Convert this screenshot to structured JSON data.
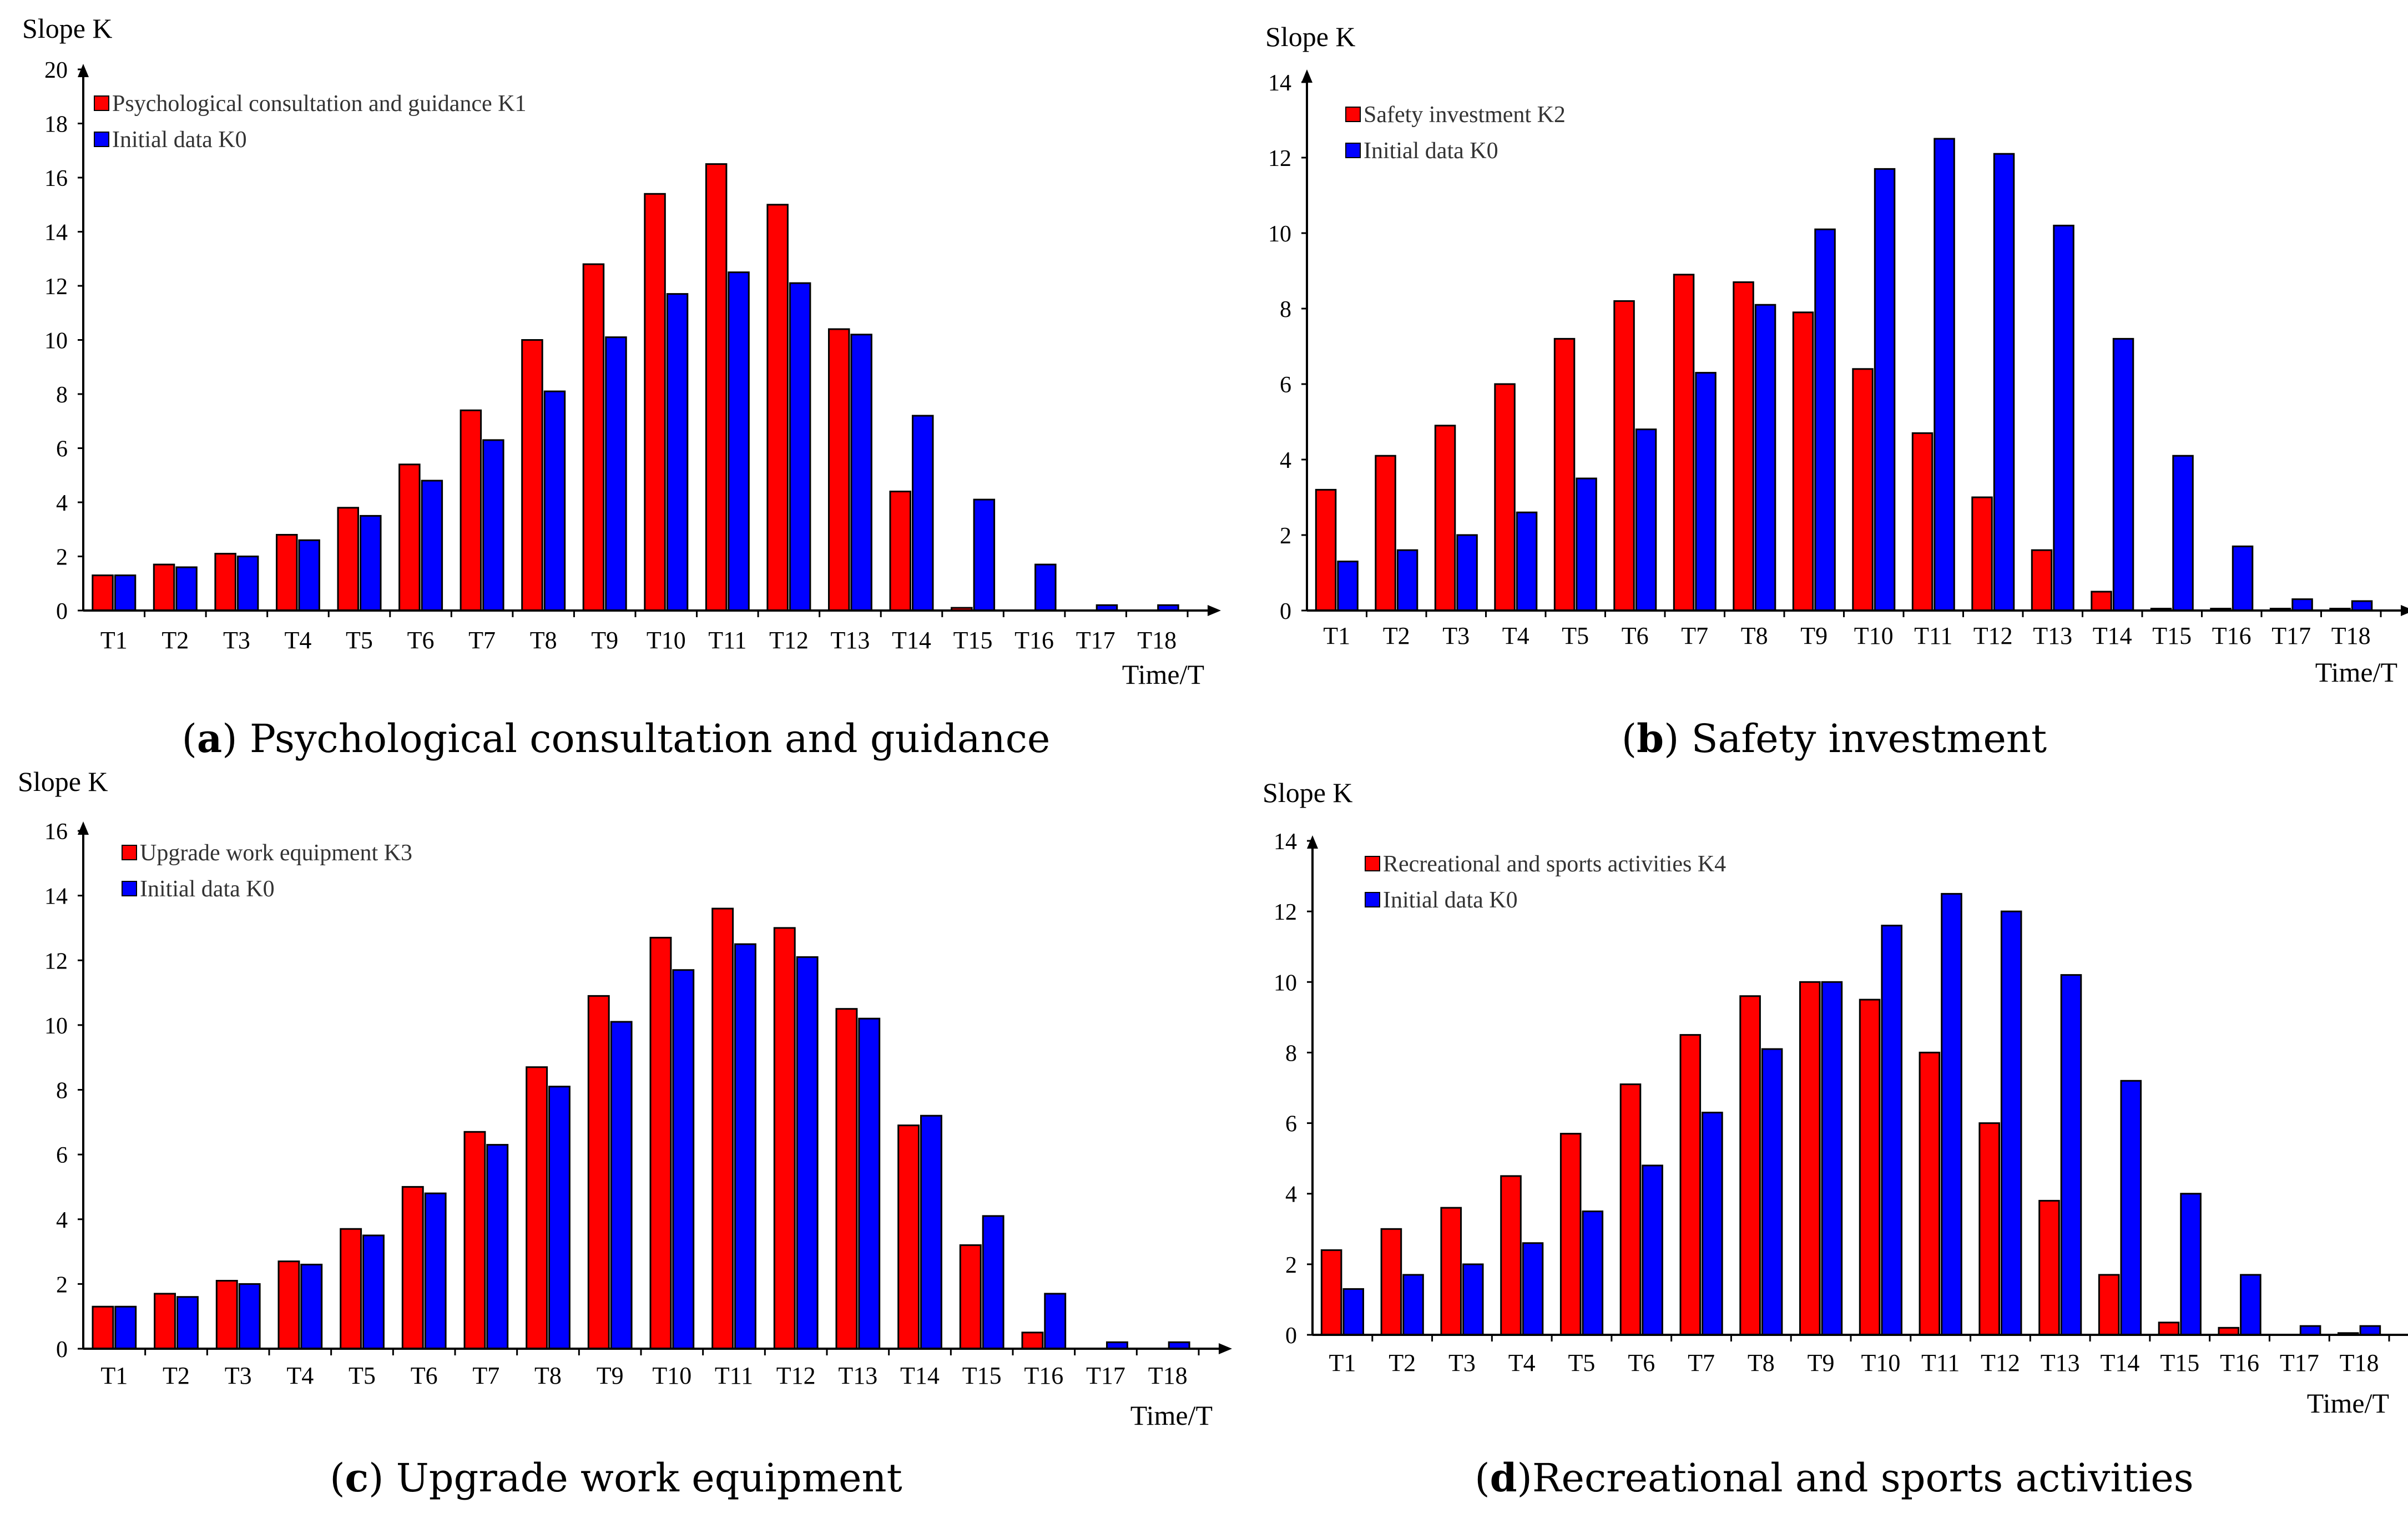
{
  "colors": {
    "red": "#ff0000",
    "blue": "#0000ff",
    "axis": "#000000",
    "text": "#000000"
  },
  "chart_data": [
    {
      "type": "bar",
      "panel": "a",
      "caption_letter": "a",
      "caption_text": "Psychological consultation and guidance",
      "ylabel": "Slope K",
      "xlabel": "Time/T",
      "ylim": [
        0,
        20
      ],
      "yticks": [
        0,
        2,
        4,
        6,
        8,
        10,
        12,
        14,
        16,
        18,
        20
      ],
      "legend_position": "top-left",
      "categories": [
        "T1",
        "T2",
        "T3",
        "T4",
        "T5",
        "T6",
        "T7",
        "T8",
        "T9",
        "T10",
        "T11",
        "T12",
        "T13",
        "T14",
        "T15",
        "T16",
        "T17",
        "T18"
      ],
      "series": [
        {
          "name": "Psychological consultation and guidance K1",
          "color": "#ff0000",
          "values": [
            1.3,
            1.7,
            2.1,
            2.8,
            3.8,
            5.4,
            7.4,
            10.0,
            12.8,
            15.4,
            16.5,
            15.0,
            10.4,
            4.4,
            0.1,
            0.0,
            0.0,
            0.0
          ]
        },
        {
          "name": "Initial data K0",
          "color": "#0000ff",
          "values": [
            1.3,
            1.6,
            2.0,
            2.6,
            3.5,
            4.8,
            6.3,
            8.1,
            10.1,
            11.7,
            12.5,
            12.1,
            10.2,
            7.2,
            4.1,
            1.7,
            0.2,
            0.2
          ]
        }
      ]
    },
    {
      "type": "bar",
      "panel": "b",
      "caption_letter": "b",
      "caption_text": "Safety investment",
      "ylabel": "Slope K",
      "xlabel": "Time/T",
      "ylim": [
        0,
        14
      ],
      "yticks": [
        0,
        2,
        4,
        6,
        8,
        10,
        12,
        14
      ],
      "legend_position": "top-left",
      "categories": [
        "T1",
        "T2",
        "T3",
        "T4",
        "T5",
        "T6",
        "T7",
        "T8",
        "T9",
        "T10",
        "T11",
        "T12",
        "T13",
        "T14",
        "T15",
        "T16",
        "T17",
        "T18"
      ],
      "series": [
        {
          "name": "Safety investment K2",
          "color": "#ff0000",
          "values": [
            3.2,
            4.1,
            4.9,
            6.0,
            7.2,
            8.2,
            8.9,
            8.7,
            7.9,
            6.4,
            4.7,
            3.0,
            1.6,
            0.5,
            0.05,
            0.05,
            0.05,
            0.05
          ]
        },
        {
          "name": "Initial data K0",
          "color": "#0000ff",
          "values": [
            1.3,
            1.6,
            2.0,
            2.6,
            3.5,
            4.8,
            6.3,
            8.1,
            10.1,
            11.7,
            12.5,
            12.1,
            10.2,
            7.2,
            4.1,
            1.7,
            0.3,
            0.25
          ]
        }
      ]
    },
    {
      "type": "bar",
      "panel": "c",
      "caption_letter": "c",
      "caption_text": "Upgrade work equipment",
      "ylabel": "Slope K",
      "xlabel": "Time/T",
      "ylim": [
        0,
        16
      ],
      "yticks": [
        0,
        2,
        4,
        6,
        8,
        10,
        12,
        14,
        16
      ],
      "legend_position": "top-left",
      "categories": [
        "T1",
        "T2",
        "T3",
        "T4",
        "T5",
        "T6",
        "T7",
        "T8",
        "T9",
        "T10",
        "T11",
        "T12",
        "T13",
        "T14",
        "T15",
        "T16",
        "T17",
        "T18"
      ],
      "series": [
        {
          "name": "Upgrade work equipment K3",
          "color": "#ff0000",
          "values": [
            1.3,
            1.7,
            2.1,
            2.7,
            3.7,
            5.0,
            6.7,
            8.7,
            10.9,
            12.7,
            13.6,
            13.0,
            10.5,
            6.9,
            3.2,
            0.5,
            0.0,
            0.0
          ]
        },
        {
          "name": "Initial data K0",
          "color": "#0000ff",
          "values": [
            1.3,
            1.6,
            2.0,
            2.6,
            3.5,
            4.8,
            6.3,
            8.1,
            10.1,
            11.7,
            12.5,
            12.1,
            10.2,
            7.2,
            4.1,
            1.7,
            0.2,
            0.2
          ]
        }
      ]
    },
    {
      "type": "bar",
      "panel": "d",
      "caption_letter": "d",
      "caption_text": "Recreational and sports activities",
      "ylabel": "Slope K",
      "xlabel": "Time/T",
      "ylim": [
        0,
        14
      ],
      "yticks": [
        0,
        2,
        4,
        6,
        8,
        10,
        12,
        14
      ],
      "legend_position": "top-left",
      "categories": [
        "T1",
        "T2",
        "T3",
        "T4",
        "T5",
        "T6",
        "T7",
        "T8",
        "T9",
        "T10",
        "T11",
        "T12",
        "T13",
        "T14",
        "T15",
        "T16",
        "T17",
        "T18"
      ],
      "series": [
        {
          "name": "Recreational and sports activities K4",
          "color": "#ff0000",
          "values": [
            2.4,
            3.0,
            3.6,
            4.5,
            5.7,
            7.1,
            8.5,
            9.6,
            10.0,
            9.5,
            8.0,
            6.0,
            3.8,
            1.7,
            0.35,
            0.2,
            0.0,
            0.05
          ]
        },
        {
          "name": "Initial data K0",
          "color": "#0000ff",
          "values": [
            1.3,
            1.7,
            2.0,
            2.6,
            3.5,
            4.8,
            6.3,
            8.1,
            10.0,
            11.6,
            12.5,
            12.0,
            10.2,
            7.2,
            4.0,
            1.7,
            0.25,
            0.25
          ]
        }
      ]
    }
  ]
}
